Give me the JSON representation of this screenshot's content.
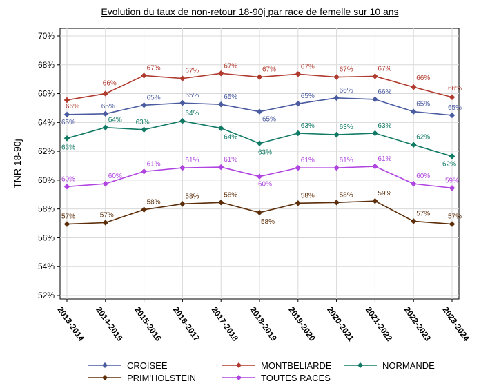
{
  "chart_data": {
    "type": "line",
    "title": "Evolution du taux de non-retour 18-90j par race de femelle sur 10 ans",
    "xlabel": "",
    "ylabel": "TNR 18-90j",
    "ylim": [
      52,
      70
    ],
    "yticks": [
      "52%",
      "54%",
      "56%",
      "58%",
      "60%",
      "62%",
      "64%",
      "66%",
      "68%",
      "70%"
    ],
    "grid": true,
    "legend_position": "bottom",
    "categories": [
      "2013-2014",
      "2014-2015",
      "2015-2016",
      "2016-2017",
      "2017-2018",
      "2018-2019",
      "2019-2020",
      "2020-2021",
      "2021-2022",
      "2022-2023",
      "2023-2024"
    ],
    "series": [
      {
        "name": "CROISEE",
        "color": "#4a5ba0",
        "values": [
          64.55,
          64.6,
          65.2,
          65.35,
          65.25,
          64.75,
          65.3,
          65.7,
          65.6,
          64.75,
          64.5
        ],
        "labels": [
          "65%",
          "65%",
          "65%",
          "65%",
          "65%",
          "65%",
          "65%",
          "66%",
          "66%",
          "65%",
          "65%"
        ]
      },
      {
        "name": "MONTBELIARDE",
        "color": "#b03a2e",
        "values": [
          65.55,
          66.0,
          67.25,
          67.05,
          67.4,
          67.15,
          67.35,
          67.15,
          67.2,
          66.45,
          65.75
        ],
        "labels": [
          "66%",
          "66%",
          "67%",
          "67%",
          "67%",
          "67%",
          "67%",
          "67%",
          "67%",
          "66%",
          "66%"
        ]
      },
      {
        "name": "NORMANDE",
        "color": "#117a65",
        "values": [
          62.9,
          63.65,
          63.5,
          64.1,
          63.6,
          62.55,
          63.25,
          63.15,
          63.25,
          62.45,
          61.65
        ],
        "labels": [
          "63%",
          "64%",
          "63%",
          "64%",
          "64%",
          "63%",
          "63%",
          "63%",
          "63%",
          "62%",
          "62%"
        ]
      },
      {
        "name": "PRIM'HOLSTEIN",
        "color": "#5c2e0a",
        "values": [
          56.95,
          57.05,
          57.95,
          58.35,
          58.45,
          57.75,
          58.4,
          58.45,
          58.55,
          57.15,
          56.95
        ],
        "labels": [
          "57%",
          "57%",
          "58%",
          "58%",
          "58%",
          "58%",
          "58%",
          "58%",
          "59%",
          "57%",
          "57%"
        ]
      },
      {
        "name": "TOUTES RACES",
        "color": "#b044e0",
        "values": [
          59.55,
          59.75,
          60.6,
          60.85,
          60.9,
          60.25,
          60.85,
          60.85,
          60.95,
          59.75,
          59.45
        ],
        "labels": [
          "60%",
          "60%",
          "61%",
          "61%",
          "61%",
          "60%",
          "61%",
          "61%",
          "61%",
          "60%",
          "59%"
        ]
      }
    ]
  }
}
